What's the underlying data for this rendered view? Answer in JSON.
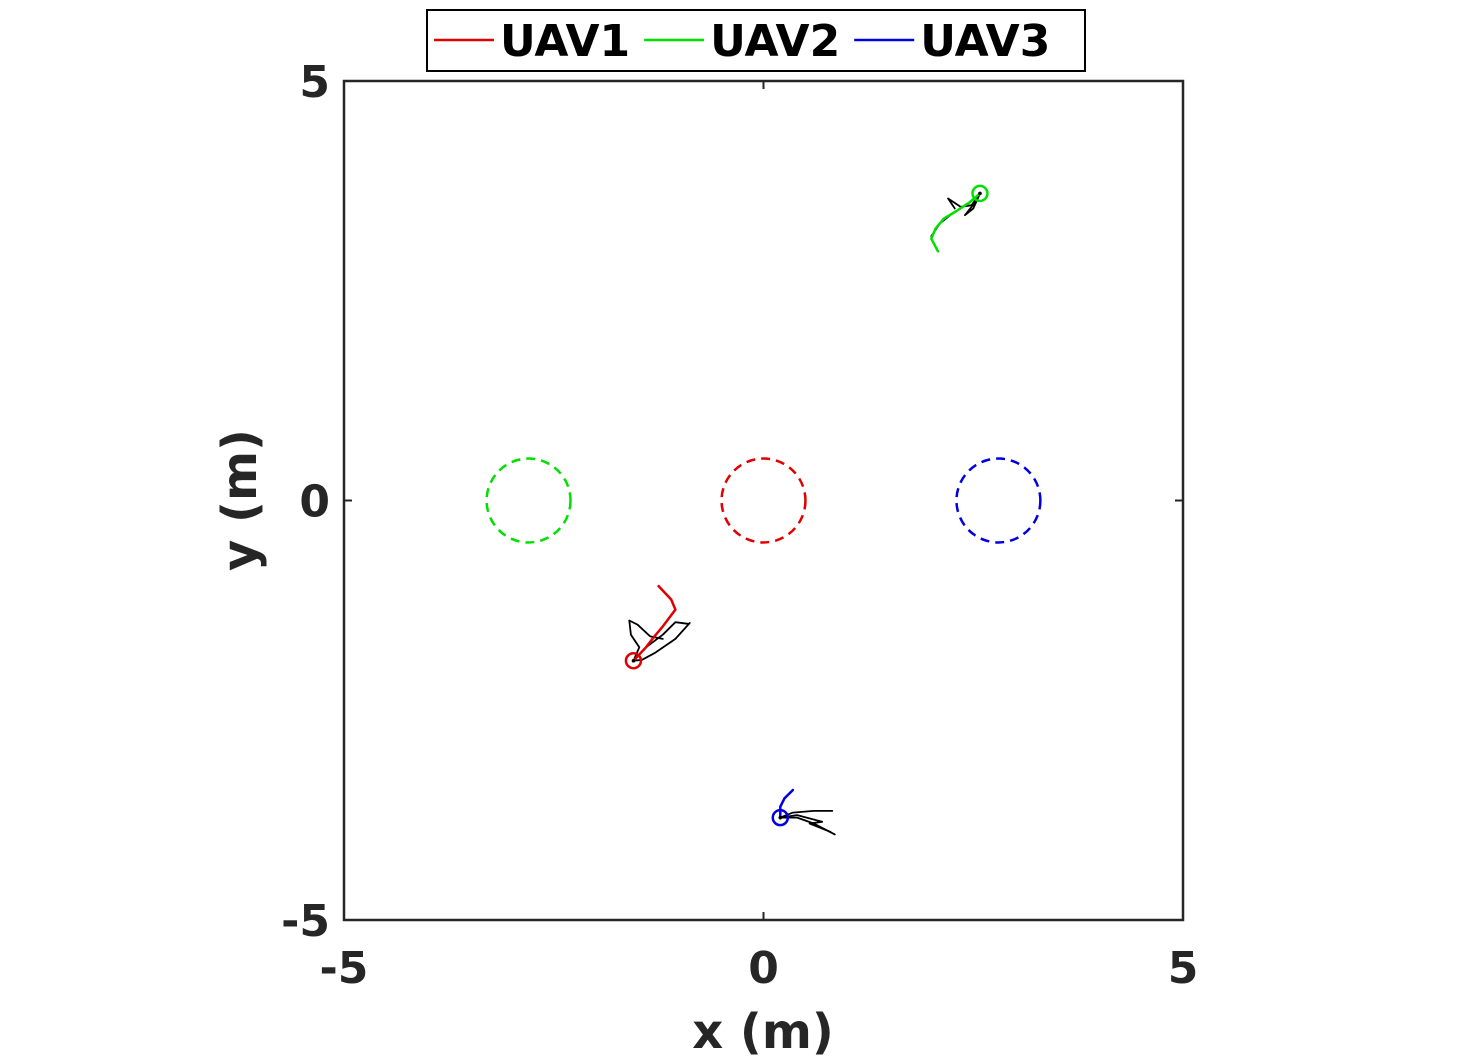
{
  "chart_data": {
    "type": "line",
    "xlabel": "x (m)",
    "ylabel": "y (m)",
    "xlim": [
      -5,
      5
    ],
    "ylim": [
      -5,
      5
    ],
    "x_ticks": [
      -5,
      0,
      5
    ],
    "y_ticks": [
      -5,
      0,
      5
    ],
    "x_tick_labels": [
      "-5",
      "0",
      "5"
    ],
    "y_tick_labels": [
      "-5",
      "0",
      "5"
    ],
    "grid": false,
    "legend_placement": "top-center",
    "legend_orientation": "horizontal",
    "series": [
      {
        "name": "UAV1",
        "color": "#e00000",
        "path": [
          [
            -1.25,
            -1.02
          ],
          [
            -1.1,
            -1.18
          ],
          [
            -1.05,
            -1.3
          ],
          [
            -1.2,
            -1.5
          ],
          [
            -1.3,
            -1.62
          ],
          [
            -1.4,
            -1.75
          ],
          [
            -1.55,
            -1.91
          ]
        ],
        "current": [
          -1.55,
          -1.91
        ],
        "goal": {
          "center": [
            0,
            0
          ],
          "radius": 0.5
        }
      },
      {
        "name": "UAV2",
        "color": "#00e000",
        "path": [
          [
            2.08,
            2.97
          ],
          [
            2.0,
            3.12
          ],
          [
            2.05,
            3.24
          ],
          [
            2.15,
            3.36
          ],
          [
            2.3,
            3.45
          ],
          [
            2.45,
            3.55
          ],
          [
            2.58,
            3.66
          ]
        ],
        "current": [
          2.58,
          3.66
        ],
        "goal": {
          "center": [
            -2.8,
            0
          ],
          "radius": 0.5
        }
      },
      {
        "name": "UAV3",
        "color": "#0000e0",
        "path": [
          [
            0.35,
            -3.45
          ],
          [
            0.25,
            -3.55
          ],
          [
            0.2,
            -3.65
          ],
          [
            0.2,
            -3.78
          ]
        ],
        "current": [
          0.2,
          -3.78
        ],
        "goal": {
          "center": [
            2.8,
            0
          ],
          "radius": 0.5
        }
      }
    ],
    "auxiliary_traces": {
      "color": "#000000",
      "note_free": true,
      "paths": [
        [
          [
            -1.55,
            -1.91
          ],
          [
            -1.4,
            -1.75
          ],
          [
            -1.2,
            -1.6
          ],
          [
            -1.05,
            -1.45
          ],
          [
            -0.9,
            -1.47
          ]
        ],
        [
          [
            -1.55,
            -1.91
          ],
          [
            -1.45,
            -1.9
          ],
          [
            -1.3,
            -1.82
          ],
          [
            -1.05,
            -1.65
          ],
          [
            -0.88,
            -1.46
          ]
        ],
        [
          [
            -1.55,
            -1.91
          ],
          [
            -1.48,
            -1.75
          ],
          [
            -1.58,
            -1.6
          ],
          [
            -1.6,
            -1.43
          ],
          [
            -1.5,
            -1.48
          ],
          [
            -1.35,
            -1.62
          ],
          [
            -1.2,
            -1.65
          ]
        ],
        [
          [
            2.58,
            3.66
          ],
          [
            2.45,
            3.55
          ],
          [
            2.25,
            3.42
          ],
          [
            2.1,
            3.3
          ],
          [
            2.0,
            3.15
          ]
        ],
        [
          [
            2.58,
            3.66
          ],
          [
            2.48,
            3.52
          ],
          [
            2.35,
            3.5
          ],
          [
            2.2,
            3.6
          ],
          [
            2.28,
            3.48
          ]
        ],
        [
          [
            2.58,
            3.66
          ],
          [
            2.5,
            3.48
          ],
          [
            2.4,
            3.4
          ],
          [
            2.52,
            3.55
          ]
        ],
        [
          [
            0.2,
            -3.78
          ],
          [
            0.35,
            -3.72
          ],
          [
            0.6,
            -3.7
          ],
          [
            0.82,
            -3.7
          ]
        ],
        [
          [
            0.2,
            -3.78
          ],
          [
            0.4,
            -3.78
          ],
          [
            0.6,
            -3.85
          ],
          [
            0.85,
            -3.98
          ]
        ],
        [
          [
            0.2,
            -3.78
          ],
          [
            0.4,
            -3.75
          ],
          [
            0.7,
            -3.83
          ],
          [
            0.55,
            -3.85
          ],
          [
            0.8,
            -3.95
          ]
        ]
      ]
    }
  }
}
